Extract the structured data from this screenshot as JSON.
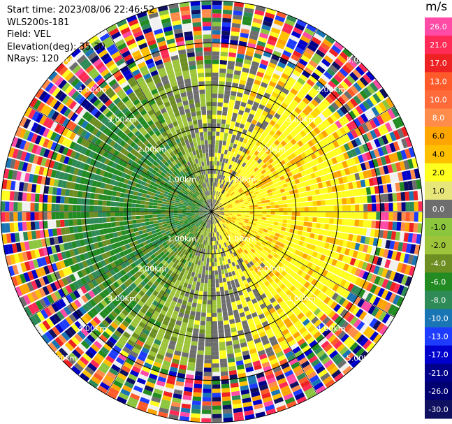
{
  "header": {
    "start_time": "Start time: 2023/08/06 22:46:52",
    "station": "WLS200s-181",
    "field": "Field: VEL",
    "elevation": "Elevation(deg): 35.30",
    "nrays": "NRays: 120"
  },
  "colorbar": {
    "unit": "m/s",
    "ticks": [
      "26.0",
      "21.0",
      "17.0",
      "13.0",
      "10.0",
      "8.0",
      "6.0",
      "4.0",
      "2.0",
      "1.0",
      "0.0",
      "-1.0",
      "-2.0",
      "-4.0",
      "-6.0",
      "-8.0",
      "-10.0",
      "-13.0",
      "-17.0",
      "-21.0",
      "-26.0",
      "-30.0"
    ],
    "colors": [
      "#ff4aa6",
      "#ff2a55",
      "#ee2222",
      "#ff5a2a",
      "#ff6a3a",
      "#ff8c4a",
      "#ffa500",
      "#ffc000",
      "#ffff20",
      "#e6e67a",
      "#6e6e6e",
      "#8cc63f",
      "#9dc43a",
      "#6d8e23",
      "#228b22",
      "#2e8b57",
      "#1a75b5",
      "#1e3cff",
      "#0000cd",
      "#00008b",
      "#000070",
      "#101060"
    ]
  },
  "chart_data": {
    "type": "heatmap",
    "title": "",
    "projection": "polar (PPI scan)",
    "field": "VEL",
    "units": "m/s",
    "nrays": 120,
    "range_ring_labels": [
      "1.00km",
      "2.00km",
      "3.00km",
      "4.00km",
      "5.00km"
    ],
    "range_rings_km": [
      1,
      2,
      3,
      4,
      5
    ],
    "max_range_km": 5.0,
    "color_scale_min": -30.0,
    "color_scale_max": 26.0,
    "pattern": {
      "inner_region_km": 3.0,
      "toward_quadrant": "west (negative, green)",
      "away_quadrant": "east (positive, yellow/orange)",
      "outer_noise_beyond_km": 3.5
    }
  }
}
